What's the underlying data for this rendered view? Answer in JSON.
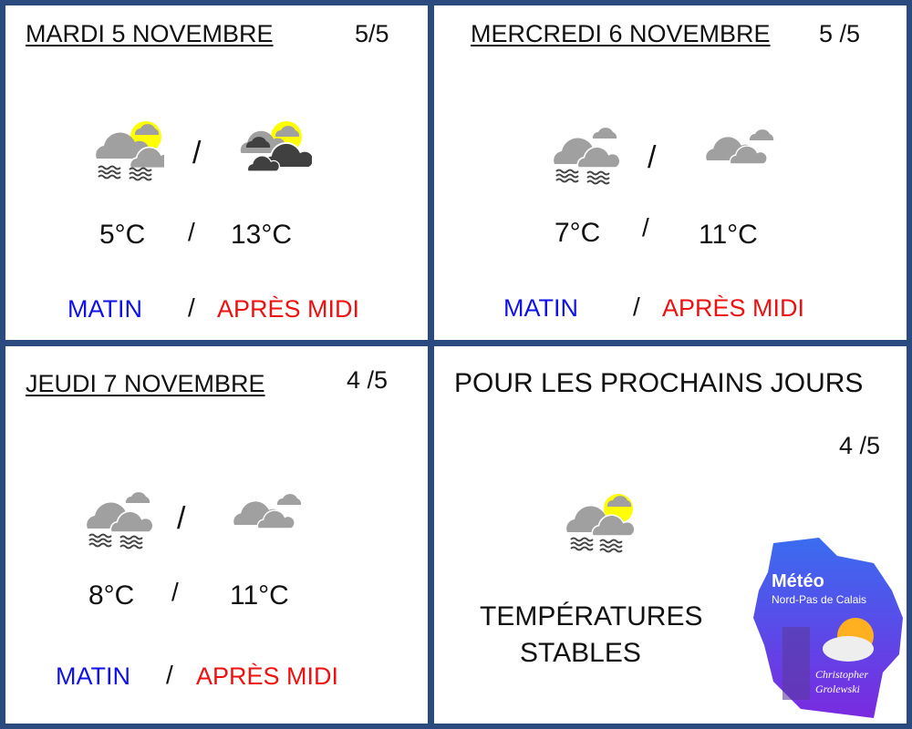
{
  "days": [
    {
      "title": "MARDI 5 NOVEMBRE",
      "score": "5/5",
      "temp_morning": "5°C",
      "temp_afternoon": "13°C",
      "icon_morning": "fog-cloud-sun-icon",
      "icon_afternoon": "dark-clouds-sun-icon"
    },
    {
      "title": "MERCREDI 6 NOVEMBRE",
      "score": "5 /5",
      "temp_morning": "7°C",
      "temp_afternoon": "11°C",
      "icon_morning": "fog-clouds-icon",
      "icon_afternoon": "clouds-icon"
    },
    {
      "title": "JEUDI 7 NOVEMBRE",
      "score": "4 /5",
      "temp_morning": "8°C",
      "temp_afternoon": "11°C",
      "icon_morning": "fog-clouds-icon",
      "icon_afternoon": "clouds-icon"
    }
  ],
  "labels": {
    "sep": "/",
    "morning": "MATIN",
    "afternoon": "APRÈS MIDI"
  },
  "outlook": {
    "title": "POUR LES PROCHAINS JOURS",
    "score": "4 /5",
    "line1": "TEMPÉRATURES",
    "line2": "STABLES",
    "icon": "fog-cloud-sun-icon"
  },
  "logo": {
    "line1": "Météo",
    "line2": "Nord-Pas de Calais",
    "author1": "Christopher",
    "author2": "Grolewski"
  },
  "colors": {
    "border": "#2b4a80",
    "morning": "#1010e8",
    "afternoon": "#ee1111",
    "sun": "#ffff00",
    "cloud": "#a0a0a0",
    "dark_cloud": "#404040"
  }
}
